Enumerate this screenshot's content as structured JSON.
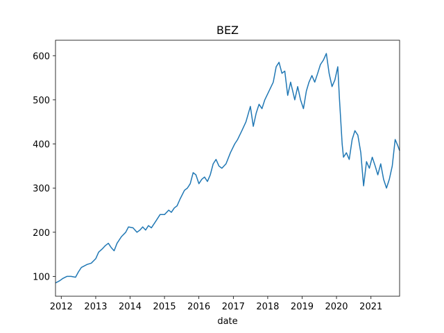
{
  "chart_data": {
    "type": "line",
    "title": "BEZ",
    "xlabel": "date",
    "ylabel": "",
    "xlim": [
      "2011-11-01",
      "2021-11-01"
    ],
    "ylim": [
      55,
      635
    ],
    "xticks": [
      "2012",
      "2013",
      "2014",
      "2015",
      "2016",
      "2017",
      "2018",
      "2019",
      "2020",
      "2021"
    ],
    "yticks": [
      100,
      200,
      300,
      400,
      500,
      600
    ],
    "grid": false,
    "colors": {
      "series": "#1f77b4",
      "axes": "#000000"
    },
    "series": [
      {
        "name": "",
        "x": [
          "2011-11-01",
          "2011-12-15",
          "2012-01-15",
          "2012-03-01",
          "2012-04-15",
          "2012-06-01",
          "2012-07-01",
          "2012-08-01",
          "2012-10-01",
          "2012-11-15",
          "2013-01-01",
          "2013-02-01",
          "2013-03-15",
          "2013-04-15",
          "2013-05-15",
          "2013-06-15",
          "2013-07-15",
          "2013-08-15",
          "2013-10-01",
          "2013-11-15",
          "2013-12-15",
          "2014-02-01",
          "2014-03-15",
          "2014-04-15",
          "2014-05-15",
          "2014-06-15",
          "2014-07-15",
          "2014-08-15",
          "2014-10-01",
          "2014-11-15",
          "2015-01-01",
          "2015-02-15",
          "2015-03-15",
          "2015-04-15",
          "2015-05-15",
          "2015-06-15",
          "2015-08-01",
          "2015-09-01",
          "2015-10-01",
          "2015-11-01",
          "2015-12-01",
          "2016-01-01",
          "2016-02-01",
          "2016-03-01",
          "2016-04-01",
          "2016-05-01",
          "2016-06-01",
          "2016-07-01",
          "2016-08-01",
          "2016-09-01",
          "2016-10-15",
          "2016-12-01",
          "2017-01-15",
          "2017-02-15",
          "2017-04-01",
          "2017-05-15",
          "2017-07-01",
          "2017-08-01",
          "2017-09-01",
          "2017-10-01",
          "2017-11-01",
          "2017-12-01",
          "2018-01-15",
          "2018-03-01",
          "2018-04-01",
          "2018-05-01",
          "2018-06-01",
          "2018-07-01",
          "2018-08-01",
          "2018-09-01",
          "2018-10-15",
          "2018-11-15",
          "2018-12-15",
          "2019-01-15",
          "2019-02-15",
          "2019-03-15",
          "2019-04-15",
          "2019-05-15",
          "2019-06-15",
          "2019-07-15",
          "2019-08-15",
          "2019-09-15",
          "2019-10-15",
          "2019-11-15",
          "2019-12-15",
          "2020-01-15",
          "2020-02-01",
          "2020-03-01",
          "2020-03-15",
          "2020-04-15",
          "2020-05-15",
          "2020-06-15",
          "2020-07-15",
          "2020-08-15",
          "2020-09-15",
          "2020-10-01",
          "2020-10-15",
          "2020-11-15",
          "2020-12-15",
          "2021-01-15",
          "2021-02-15",
          "2021-03-15",
          "2021-04-15",
          "2021-05-15",
          "2021-06-15",
          "2021-07-15",
          "2021-08-15",
          "2021-09-15",
          "2021-10-15",
          "2021-11-01"
        ],
        "values": [
          85,
          90,
          95,
          100,
          100,
          98,
          110,
          120,
          127,
          130,
          140,
          155,
          163,
          170,
          175,
          165,
          158,
          175,
          190,
          200,
          212,
          210,
          200,
          205,
          212,
          205,
          215,
          210,
          225,
          240,
          240,
          250,
          245,
          255,
          260,
          275,
          295,
          300,
          310,
          335,
          330,
          310,
          320,
          325,
          315,
          330,
          355,
          365,
          350,
          345,
          355,
          380,
          400,
          410,
          430,
          450,
          485,
          440,
          470,
          490,
          480,
          500,
          520,
          540,
          575,
          585,
          560,
          565,
          510,
          540,
          500,
          530,
          500,
          480,
          520,
          540,
          555,
          540,
          560,
          580,
          590,
          605,
          560,
          530,
          545,
          575,
          505,
          400,
          370,
          380,
          365,
          410,
          430,
          420,
          380,
          340,
          305,
          360,
          345,
          370,
          350,
          330,
          355,
          320,
          300,
          320,
          350,
          410,
          395,
          385
        ]
      }
    ]
  }
}
